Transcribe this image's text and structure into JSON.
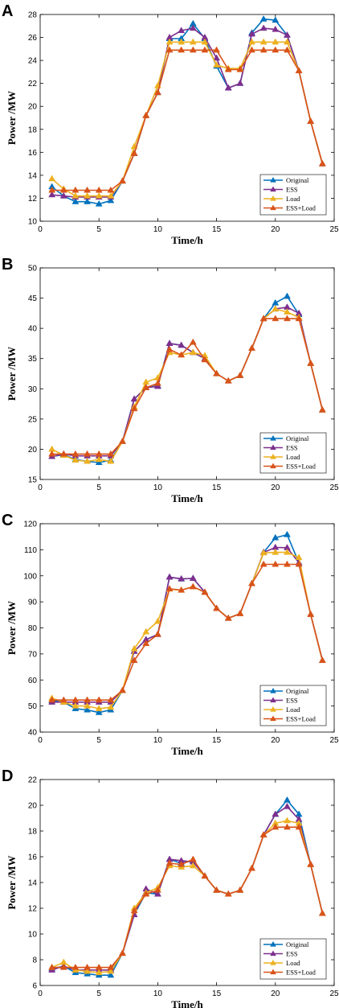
{
  "chart_data": [
    {
      "panel": "A",
      "type": "line",
      "xlabel": "Time/h",
      "ylabel": "Power /MW",
      "xlim": [
        0,
        25
      ],
      "ylim": [
        10,
        28
      ],
      "xticks": [
        0,
        5,
        10,
        15,
        20,
        25
      ],
      "yticks": [
        10,
        12,
        14,
        16,
        18,
        20,
        22,
        24,
        26,
        28
      ],
      "legend_position": "bottom-right",
      "series": [
        {
          "name": "Original",
          "color": "#0072BD",
          "x": [
            1,
            2,
            3,
            4,
            5,
            6,
            7,
            8,
            9,
            10,
            11,
            12,
            13,
            14,
            15,
            16,
            17,
            18,
            19,
            20,
            21,
            22,
            23,
            24
          ],
          "values": [
            13.0,
            12.2,
            11.7,
            11.7,
            11.5,
            11.8,
            13.5,
            15.9,
            19.2,
            21.2,
            25.9,
            25.9,
            27.2,
            25.9,
            23.5,
            21.6,
            22.0,
            26.4,
            27.6,
            27.5,
            26.2,
            23.1,
            18.7,
            15.0
          ]
        },
        {
          "name": "ESS",
          "color": "#7E2F8E",
          "x": [
            1,
            2,
            3,
            4,
            5,
            6,
            7,
            8,
            9,
            10,
            11,
            12,
            13,
            14,
            15,
            16,
            17,
            18,
            19,
            20,
            21,
            22,
            23,
            24
          ],
          "values": [
            12.3,
            12.2,
            12.1,
            12.1,
            12.1,
            12.1,
            13.5,
            15.9,
            19.2,
            21.2,
            26.0,
            26.6,
            26.8,
            26.0,
            24.2,
            21.6,
            22.0,
            26.3,
            26.8,
            26.7,
            26.2,
            23.1,
            18.7,
            15.0
          ]
        },
        {
          "name": "Load",
          "color": "#EDB120",
          "x": [
            1,
            2,
            3,
            4,
            5,
            6,
            7,
            8,
            9,
            10,
            11,
            12,
            13,
            14,
            15,
            16,
            17,
            18,
            19,
            20,
            21,
            22,
            23,
            24
          ],
          "values": [
            13.7,
            12.8,
            12.2,
            12.2,
            12.2,
            12.2,
            13.5,
            16.5,
            19.2,
            21.8,
            25.6,
            25.6,
            25.6,
            25.6,
            23.6,
            23.3,
            23.3,
            25.6,
            25.6,
            25.6,
            25.6,
            23.1,
            18.7,
            15.0
          ]
        },
        {
          "name": "ESS+Load",
          "color": "#D95319",
          "x": [
            1,
            2,
            3,
            4,
            5,
            6,
            7,
            8,
            9,
            10,
            11,
            12,
            13,
            14,
            15,
            16,
            17,
            18,
            19,
            20,
            21,
            22,
            23,
            24
          ],
          "values": [
            12.7,
            12.7,
            12.7,
            12.7,
            12.7,
            12.7,
            13.5,
            15.9,
            19.2,
            21.2,
            24.9,
            24.9,
            24.9,
            24.9,
            24.9,
            23.2,
            23.2,
            24.9,
            24.9,
            24.9,
            24.9,
            23.1,
            18.7,
            15.0
          ]
        }
      ]
    },
    {
      "panel": "B",
      "type": "line",
      "xlabel": "Time/h",
      "ylabel": "Power /MW",
      "xlim": [
        0,
        25
      ],
      "ylim": [
        15,
        50
      ],
      "xticks": [
        0,
        5,
        10,
        15,
        20,
        25
      ],
      "yticks": [
        15,
        20,
        25,
        30,
        35,
        40,
        45,
        50
      ],
      "legend_position": "bottom-right",
      "series": [
        {
          "name": "Original",
          "color": "#0072BD",
          "x": [
            1,
            2,
            3,
            4,
            5,
            6,
            7,
            8,
            9,
            10,
            11,
            12,
            13,
            14,
            15,
            16,
            17,
            18,
            19,
            20,
            21,
            22,
            23,
            24
          ],
          "values": [
            18.8,
            19.1,
            18.3,
            18.0,
            17.8,
            18.2,
            21.3,
            28.3,
            30.2,
            30.5,
            37.5,
            37.2,
            36.0,
            35.0,
            32.5,
            31.3,
            32.2,
            36.7,
            41.6,
            44.2,
            45.3,
            42.3,
            34.2,
            26.5
          ]
        },
        {
          "name": "ESS",
          "color": "#7E2F8E",
          "x": [
            1,
            2,
            3,
            4,
            5,
            6,
            7,
            8,
            9,
            10,
            11,
            12,
            13,
            14,
            15,
            16,
            17,
            18,
            19,
            20,
            21,
            22,
            23,
            24
          ],
          "values": [
            18.8,
            19.2,
            18.9,
            18.9,
            18.9,
            18.9,
            21.3,
            28.3,
            30.2,
            30.4,
            37.5,
            37.2,
            36.0,
            35.0,
            32.5,
            31.3,
            32.2,
            36.7,
            41.6,
            43.2,
            43.5,
            42.5,
            34.2,
            26.5
          ]
        },
        {
          "name": "Load",
          "color": "#EDB120",
          "x": [
            1,
            2,
            3,
            4,
            5,
            6,
            7,
            8,
            9,
            10,
            11,
            12,
            13,
            14,
            15,
            16,
            17,
            18,
            19,
            20,
            21,
            22,
            23,
            24
          ],
          "values": [
            20.0,
            19.0,
            18.2,
            18.0,
            18.3,
            18.0,
            21.3,
            27.0,
            31.1,
            31.8,
            36.0,
            35.6,
            36.0,
            35.5,
            32.5,
            31.3,
            32.2,
            36.7,
            41.6,
            43.2,
            42.7,
            41.8,
            34.2,
            26.5
          ]
        },
        {
          "name": "ESS+Load",
          "color": "#D95319",
          "x": [
            1,
            2,
            3,
            4,
            5,
            6,
            7,
            8,
            9,
            10,
            11,
            12,
            13,
            14,
            15,
            16,
            17,
            18,
            19,
            20,
            21,
            22,
            23,
            24
          ],
          "values": [
            19.2,
            19.2,
            19.2,
            19.2,
            19.2,
            19.2,
            21.3,
            26.7,
            30.2,
            30.9,
            36.5,
            35.6,
            37.7,
            34.8,
            32.5,
            31.3,
            32.2,
            36.7,
            41.6,
            41.6,
            41.6,
            41.6,
            34.2,
            26.5
          ]
        }
      ]
    },
    {
      "panel": "C",
      "type": "line",
      "xlabel": "Time/h",
      "ylabel": "Power /MW",
      "xlim": [
        0,
        25
      ],
      "ylim": [
        40,
        120
      ],
      "xticks": [
        0,
        5,
        10,
        15,
        20,
        25
      ],
      "yticks": [
        40,
        50,
        60,
        70,
        80,
        90,
        100,
        110,
        120
      ],
      "legend_position": "bottom-right",
      "series": [
        {
          "name": "Original",
          "color": "#0072BD",
          "x": [
            1,
            2,
            3,
            4,
            5,
            6,
            7,
            8,
            9,
            10,
            11,
            12,
            13,
            14,
            15,
            16,
            17,
            18,
            19,
            20,
            21,
            22,
            23,
            24
          ],
          "values": [
            52.0,
            51.5,
            49.0,
            48.5,
            47.5,
            48.5,
            56.0,
            71.0,
            75.5,
            77.5,
            99.5,
            98.8,
            99.0,
            93.7,
            87.5,
            83.7,
            85.5,
            97.0,
            109.0,
            114.6,
            115.8,
            105.0,
            85.2,
            67.5
          ]
        },
        {
          "name": "ESS",
          "color": "#7E2F8E",
          "x": [
            1,
            2,
            3,
            4,
            5,
            6,
            7,
            8,
            9,
            10,
            11,
            12,
            13,
            14,
            15,
            16,
            17,
            18,
            19,
            20,
            21,
            22,
            23,
            24
          ],
          "values": [
            51.5,
            51.5,
            51.5,
            51.5,
            51.5,
            51.5,
            56.0,
            71.0,
            75.5,
            77.5,
            99.5,
            98.8,
            99.0,
            93.7,
            87.5,
            83.7,
            85.5,
            97.0,
            109.0,
            110.9,
            110.8,
            105.0,
            85.2,
            67.5
          ]
        },
        {
          "name": "Load",
          "color": "#EDB120",
          "x": [
            1,
            2,
            3,
            4,
            5,
            6,
            7,
            8,
            9,
            10,
            11,
            12,
            13,
            14,
            15,
            16,
            17,
            18,
            19,
            20,
            21,
            22,
            23,
            24
          ],
          "values": [
            53.0,
            51.5,
            50.0,
            50.0,
            49.0,
            49.5,
            56.0,
            72.0,
            78.5,
            82.5,
            94.9,
            94.5,
            95.8,
            93.7,
            87.5,
            83.7,
            85.5,
            97.0,
            108.8,
            109.0,
            109.0,
            107.0,
            85.2,
            67.5
          ]
        },
        {
          "name": "ESS+Load",
          "color": "#D95319",
          "x": [
            1,
            2,
            3,
            4,
            5,
            6,
            7,
            8,
            9,
            10,
            11,
            12,
            13,
            14,
            15,
            16,
            17,
            18,
            19,
            20,
            21,
            22,
            23,
            24
          ],
          "values": [
            52.3,
            52.3,
            52.3,
            52.3,
            52.3,
            52.3,
            56.0,
            67.5,
            74.0,
            77.5,
            95.0,
            94.5,
            95.8,
            93.7,
            87.5,
            83.7,
            85.5,
            97.0,
            104.4,
            104.4,
            104.4,
            104.4,
            85.2,
            67.5
          ]
        }
      ]
    },
    {
      "panel": "D",
      "type": "line",
      "xlabel": "Time/h",
      "ylabel": "Power /MW",
      "xlim": [
        0,
        25
      ],
      "ylim": [
        6,
        22
      ],
      "xticks": [
        0,
        5,
        10,
        15,
        20,
        25
      ],
      "yticks": [
        6,
        8,
        10,
        12,
        14,
        16,
        18,
        20,
        22
      ],
      "legend_position": "bottom-right",
      "series": [
        {
          "name": "Original",
          "color": "#0072BD",
          "x": [
            1,
            2,
            3,
            4,
            5,
            6,
            7,
            8,
            9,
            10,
            11,
            12,
            13,
            14,
            15,
            16,
            17,
            18,
            19,
            20,
            21,
            22,
            23,
            24
          ],
          "values": [
            7.3,
            7.5,
            7.0,
            6.9,
            6.8,
            6.8,
            8.5,
            11.5,
            13.2,
            13.1,
            15.8,
            15.5,
            15.7,
            14.5,
            13.4,
            13.1,
            13.4,
            15.1,
            17.7,
            19.3,
            20.4,
            19.3,
            15.4,
            11.6
          ]
        },
        {
          "name": "ESS",
          "color": "#7E2F8E",
          "x": [
            1,
            2,
            3,
            4,
            5,
            6,
            7,
            8,
            9,
            10,
            11,
            12,
            13,
            14,
            15,
            16,
            17,
            18,
            19,
            20,
            21,
            22,
            23,
            24
          ],
          "values": [
            7.2,
            7.5,
            7.2,
            7.2,
            7.2,
            7.2,
            8.5,
            11.5,
            13.5,
            13.1,
            15.8,
            15.7,
            15.6,
            14.5,
            13.4,
            13.1,
            13.4,
            15.1,
            17.7,
            19.3,
            19.9,
            18.9,
            15.4,
            11.6
          ]
        },
        {
          "name": "Load",
          "color": "#EDB120",
          "x": [
            1,
            2,
            3,
            4,
            5,
            6,
            7,
            8,
            9,
            10,
            11,
            12,
            13,
            14,
            15,
            16,
            17,
            18,
            19,
            20,
            21,
            22,
            23,
            24
          ],
          "values": [
            7.4,
            7.8,
            7.2,
            7.1,
            7.0,
            7.1,
            8.5,
            12.0,
            13.2,
            13.6,
            15.3,
            15.2,
            15.3,
            14.5,
            13.4,
            13.1,
            13.4,
            15.1,
            17.7,
            18.6,
            18.8,
            18.6,
            15.4,
            11.6
          ]
        },
        {
          "name": "ESS+Load",
          "color": "#D95319",
          "x": [
            1,
            2,
            3,
            4,
            5,
            6,
            7,
            8,
            9,
            10,
            11,
            12,
            13,
            14,
            15,
            16,
            17,
            18,
            19,
            20,
            21,
            22,
            23,
            24
          ],
          "values": [
            7.4,
            7.4,
            7.4,
            7.4,
            7.4,
            7.4,
            8.5,
            11.8,
            13.1,
            13.4,
            15.5,
            15.4,
            15.8,
            14.5,
            13.4,
            13.1,
            13.4,
            15.1,
            17.7,
            18.3,
            18.3,
            18.3,
            15.4,
            11.6
          ]
        }
      ]
    }
  ]
}
